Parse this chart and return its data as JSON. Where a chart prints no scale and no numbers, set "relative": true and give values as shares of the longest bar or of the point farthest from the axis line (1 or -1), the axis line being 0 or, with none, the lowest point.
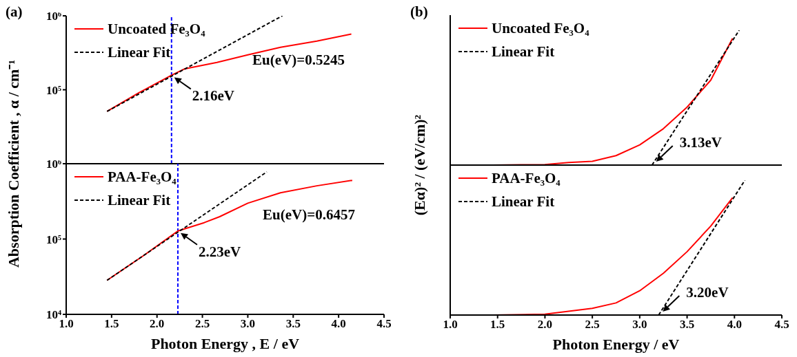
{
  "chart_data": [
    {
      "type": "line",
      "annotations": [
        "(a)",
        {
          "text": "2.16eV",
          "x": 2.16,
          "y": 157000
        },
        "Eu(eV)=0.5245"
      ],
      "ylabel": "Absorption Coefficient , α / cm⁻¹",
      "xlim": [
        1,
        4.5
      ],
      "xticks": [
        1,
        1.5,
        2,
        2.5,
        3,
        3.5,
        4,
        4.5
      ],
      "ylim": [
        10000,
        1000000
      ],
      "yticks": [
        {
          "value": 10000,
          "label": null
        },
        {
          "value": 100000,
          "label": "10⁵"
        },
        {
          "value": 1000000,
          "label": "10⁶"
        }
      ],
      "log": "y",
      "tick_labels": "y",
      "legend": "top left",
      "marker": "none",
      "ref_lines": [
        {
          "axis": "x",
          "value": 2.16,
          "color": "#0000ff",
          "line_style": "dashed"
        }
      ],
      "series": [
        {
          "name": "Uncoated Fe₃O₄",
          "color": "#ff0000",
          "line_style": "solid",
          "x": [
            1.45,
            1.8,
            2.16,
            2.3,
            2.66,
            3.0,
            3.36,
            3.76,
            4.14
          ],
          "values": [
            51000,
            91000,
            157000,
            191000,
            234000,
            296000,
            375000,
            455000,
            566000
          ]
        },
        {
          "name": "Linear Fit",
          "color": "#000000",
          "line_style": "dashed",
          "x": [
            1.45,
            3.38
          ],
          "values": [
            51000,
            1000000
          ]
        }
      ]
    },
    {
      "type": "line",
      "annotations": [
        {
          "text": "2.23eV",
          "x": 2.23,
          "y": 128000
        },
        "Eu(eV)=0.6457"
      ],
      "xlabel": "Photon Energy , E / eV",
      "xlim": [
        1,
        4.5
      ],
      "xticks": [
        {
          "value": 1,
          "label": "1.0"
        },
        1.5,
        {
          "value": 2,
          "label": "2.0"
        },
        2.5,
        {
          "value": 3,
          "label": "3.0"
        },
        3.5,
        {
          "value": 4,
          "label": "4.0"
        },
        4.5
      ],
      "ylim": [
        10000,
        1000000
      ],
      "yticks": [
        {
          "value": 10000,
          "label": "10⁴"
        },
        {
          "value": 100000,
          "label": "10⁵"
        },
        {
          "value": 1000000,
          "label": "10⁶"
        }
      ],
      "log": "y",
      "legend": "top left",
      "marker": "none",
      "ref_lines": [
        {
          "axis": "x",
          "value": 2.23,
          "color": "#0000ff",
          "line_style": "dashed"
        }
      ],
      "series": [
        {
          "name": "PAA-Fe₃O₄",
          "color": "#ff0000",
          "line_style": "solid",
          "x": [
            1.45,
            1.85,
            2.23,
            2.52,
            2.69,
            3.0,
            3.36,
            3.76,
            4.15
          ],
          "values": [
            28300,
            60000,
            128000,
            165000,
            198000,
            299000,
            411000,
            509000,
            601000
          ]
        },
        {
          "name": "Linear Fit",
          "color": "#000000",
          "line_style": "dashed",
          "x": [
            1.45,
            3.21
          ],
          "values": [
            28300,
            780000
          ]
        }
      ]
    },
    {
      "type": "line",
      "relative": true,
      "annotations": [
        "(b)",
        {
          "text": "3.13eV",
          "x": 3.13,
          "y": 0
        }
      ],
      "ylabel": "(Eα)² / (eV/cm)²",
      "xlim": [
        1,
        4.5
      ],
      "xticks": [
        1,
        1.5,
        2,
        2.5,
        3,
        3.5,
        4,
        4.5
      ],
      "tick_labels": false,
      "legend": "top left",
      "marker": "none",
      "series": [
        {
          "name": "Uncoated Fe₃O₄",
          "color": "#ff0000",
          "line_style": "solid",
          "x": [
            1.45,
            1.75,
            2.0,
            2.25,
            2.5,
            2.75,
            3.0,
            3.25,
            3.5,
            3.75,
            3.98
          ],
          "values": [
            0,
            0.002,
            0.004,
            0.019,
            0.028,
            0.07,
            0.15,
            0.27,
            0.43,
            0.63,
            0.94
          ]
        },
        {
          "name": "Linear Fit",
          "color": "#000000",
          "line_style": "dashed",
          "x": [
            3.13,
            4.05
          ],
          "values": [
            0,
            1
          ]
        }
      ]
    },
    {
      "type": "line",
      "relative": true,
      "annotations": [
        {
          "text": "3.20eV",
          "x": 3.2,
          "y": 0
        }
      ],
      "xlabel": "Photon Energy / eV",
      "xlim": [
        1,
        4.5
      ],
      "xticks": [
        {
          "value": 1,
          "label": "1.0"
        },
        1.5,
        {
          "value": 2,
          "label": "2.0"
        },
        2.5,
        {
          "value": 3,
          "label": "3.0"
        },
        3.5,
        {
          "value": 4,
          "label": "4.0"
        },
        4.5
      ],
      "tick_labels": "x",
      "legend": "top left",
      "marker": "none",
      "series": [
        {
          "name": "PAA-Fe₃O₄",
          "color": "#ff0000",
          "line_style": "solid",
          "x": [
            1.45,
            2.0,
            2.5,
            2.75,
            3.0,
            3.25,
            3.5,
            3.75,
            3.98
          ],
          "values": [
            0,
            0.006,
            0.05,
            0.09,
            0.18,
            0.31,
            0.47,
            0.66,
            0.87
          ]
        },
        {
          "name": "Linear Fit",
          "color": "#000000",
          "line_style": "dashed",
          "x": [
            3.2,
            4.11
          ],
          "values": [
            0,
            1
          ]
        }
      ]
    }
  ]
}
